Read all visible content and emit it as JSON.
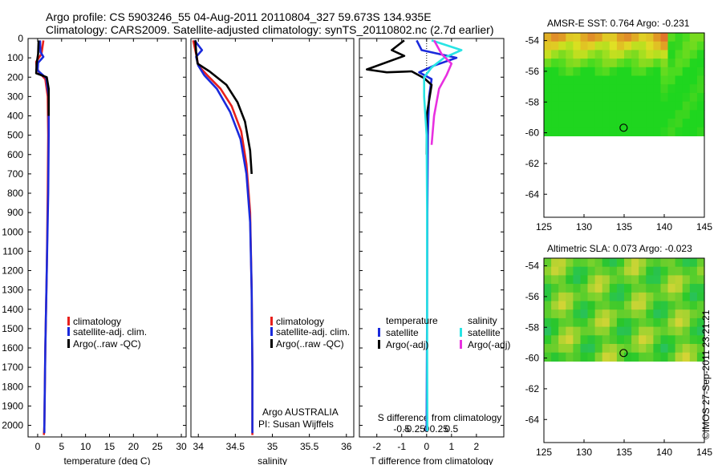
{
  "header": {
    "line1": "Argo profile: CS 5903246_55 04-Aug-2011 20110804_327 59.673S 134.935E",
    "line2": "Climatology: CARS2009. Satellite-adjusted climatology: synTS_20110802.nc (2.7d earlier)"
  },
  "stamp": "©IMOS 27-Sep-2011 23:21:21",
  "colors": {
    "climatology": "#e8201c",
    "satellite": "#1a2adc",
    "argo": "#000000",
    "satellite_s": "#28e4e4",
    "argo_s": "#e830e0",
    "ocean_green": "#40c858"
  },
  "chart_data": [
    {
      "type": "line",
      "name": "temperature-profile",
      "xlabel": "temperature (deg C)",
      "ylabel": "",
      "xlim": [
        -2,
        31
      ],
      "ylim": [
        2060,
        0
      ],
      "xticks": [
        0,
        5,
        10,
        15,
        20,
        25,
        30
      ],
      "yticks": [
        0,
        100,
        200,
        300,
        400,
        500,
        600,
        700,
        800,
        900,
        1000,
        1100,
        1200,
        1300,
        1400,
        1500,
        1600,
        1700,
        1800,
        1900,
        2000
      ],
      "legend": [
        "climatology",
        "satellite-adj. clim.",
        "Argo(..raw -QC)"
      ],
      "legend_position": "lower-center",
      "series": [
        {
          "name": "climatology",
          "color": "#e8201c",
          "points": [
            [
              1.2,
              10
            ],
            [
              0.8,
              80
            ],
            [
              -0.3,
              120
            ],
            [
              -0.2,
              150
            ],
            [
              0.3,
              175
            ],
            [
              1.6,
              210
            ],
            [
              2.1,
              300
            ],
            [
              2.2,
              500
            ],
            [
              2.1,
              800
            ],
            [
              1.9,
              1200
            ],
            [
              1.6,
              1600
            ],
            [
              1.4,
              2000
            ],
            [
              1.3,
              2050
            ]
          ]
        },
        {
          "name": "satellite-adj. clim.",
          "color": "#1a2adc",
          "points": [
            [
              0.5,
              10
            ],
            [
              0.6,
              70
            ],
            [
              1.2,
              95
            ],
            [
              0.1,
              125
            ],
            [
              0.0,
              165
            ],
            [
              1.8,
              205
            ],
            [
              2.3,
              300
            ],
            [
              2.3,
              500
            ],
            [
              2.2,
              800
            ],
            [
              1.9,
              1200
            ],
            [
              1.6,
              1600
            ],
            [
              1.4,
              2000
            ],
            [
              1.4,
              2040
            ]
          ]
        },
        {
          "name": "Argo(..raw -QC)",
          "color": "#000000",
          "points": [
            [
              0.2,
              10
            ],
            [
              0.1,
              80
            ],
            [
              -0.2,
              130
            ],
            [
              -0.3,
              180
            ],
            [
              1.9,
              200
            ],
            [
              2.3,
              260
            ],
            [
              2.3,
              400
            ]
          ]
        }
      ]
    },
    {
      "type": "line",
      "name": "salinity-profile",
      "xlabel": "salinity",
      "ylabel": "",
      "xlim": [
        33.9,
        36.1
      ],
      "ylim": [
        2060,
        0
      ],
      "xticks": [
        34,
        34.5,
        35,
        35.5,
        36
      ],
      "xticklabels": [
        "34",
        "34.5",
        "35",
        "35.5",
        "36"
      ],
      "legend": [
        "climatology",
        "satellite-adj. clim.",
        "Argo(..raw -QC)"
      ],
      "annotation": [
        "Argo AUSTRALIA",
        "PI: Susan Wijffels"
      ],
      "series": [
        {
          "name": "climatology",
          "color": "#e8201c",
          "points": [
            [
              33.93,
              10
            ],
            [
              33.97,
              80
            ],
            [
              34.0,
              140
            ],
            [
              34.12,
              190
            ],
            [
              34.3,
              260
            ],
            [
              34.45,
              350
            ],
            [
              34.58,
              480
            ],
            [
              34.65,
              650
            ],
            [
              34.7,
              900
            ],
            [
              34.72,
              1300
            ],
            [
              34.73,
              1700
            ],
            [
              34.73,
              2050
            ]
          ]
        },
        {
          "name": "satellite-adj. clim.",
          "color": "#1a2adc",
          "points": [
            [
              33.95,
              10
            ],
            [
              34.05,
              60
            ],
            [
              33.97,
              95
            ],
            [
              34.0,
              140
            ],
            [
              34.08,
              190
            ],
            [
              34.25,
              260
            ],
            [
              34.43,
              380
            ],
            [
              34.57,
              520
            ],
            [
              34.65,
              700
            ],
            [
              34.7,
              950
            ],
            [
              34.72,
              1300
            ],
            [
              34.73,
              1700
            ],
            [
              34.73,
              2040
            ]
          ]
        },
        {
          "name": "Argo(..raw -QC)",
          "color": "#000000",
          "points": [
            [
              33.96,
              10
            ],
            [
              33.97,
              70
            ],
            [
              33.99,
              130
            ],
            [
              34.15,
              170
            ],
            [
              34.38,
              240
            ],
            [
              34.53,
              330
            ],
            [
              34.63,
              430
            ],
            [
              34.7,
              580
            ],
            [
              34.72,
              700
            ]
          ]
        }
      ]
    },
    {
      "type": "line",
      "name": "difference-profile",
      "xlabel": "T difference from climatology",
      "top_label": "S difference from climatology",
      "xlim": [
        -2.7,
        3.1
      ],
      "ylim": [
        2060,
        0
      ],
      "xticks": [
        -2,
        -1,
        0,
        1,
        2
      ],
      "s_xticks": [
        -0.5,
        -0.25,
        0,
        0.25,
        0.5
      ],
      "s_xticklabels": [
        "-0.5",
        "-0.25",
        "0",
        "0.25",
        "0.5"
      ],
      "legend_titles": [
        "temperature",
        "salinity"
      ],
      "legend": [
        "satellite",
        "Argo(-adj)",
        "satellite",
        "Argo(-adj)"
      ],
      "series": [
        {
          "name": "satellite",
          "group": "temperature",
          "color": "#1a2adc",
          "points": [
            [
              -0.4,
              10
            ],
            [
              -0.2,
              60
            ],
            [
              1.2,
              100
            ],
            [
              0.3,
              140
            ],
            [
              -0.3,
              175
            ],
            [
              0.2,
              210
            ],
            [
              0.1,
              300
            ],
            [
              0.05,
              500
            ],
            [
              0.03,
              900
            ],
            [
              0.02,
              1400
            ],
            [
              0.0,
              2030
            ]
          ]
        },
        {
          "name": "Argo(-adj)",
          "group": "temperature",
          "color": "#000000",
          "points": [
            [
              -0.9,
              10
            ],
            [
              -1.4,
              60
            ],
            [
              -0.9,
              90
            ],
            [
              -2.4,
              160
            ],
            [
              -1.6,
              175
            ],
            [
              -0.6,
              170
            ],
            [
              -0.1,
              205
            ],
            [
              0.2,
              240
            ],
            [
              0.0,
              400
            ],
            [
              0.0,
              600
            ]
          ]
        },
        {
          "name": "satellite",
          "group": "salinity",
          "color": "#28e4e4",
          "points": [
            [
              0.2,
              10
            ],
            [
              1.4,
              60
            ],
            [
              0.7,
              100
            ],
            [
              0.2,
              150
            ],
            [
              -0.1,
              200
            ],
            [
              -0.1,
              300
            ],
            [
              0.0,
              500
            ],
            [
              0.02,
              900
            ],
            [
              0.02,
              1400
            ],
            [
              0.03,
              2030
            ]
          ]
        },
        {
          "name": "Argo(-adj)",
          "group": "salinity",
          "color": "#e830e0",
          "points": [
            [
              0.3,
              10
            ],
            [
              0.6,
              80
            ],
            [
              1.0,
              130
            ],
            [
              0.8,
              190
            ],
            [
              0.5,
              260
            ],
            [
              0.3,
              400
            ],
            [
              0.2,
              550
            ]
          ]
        }
      ]
    },
    {
      "type": "heatmap",
      "name": "sst-map",
      "title": "AMSR-E SST: 0.764 Argo: -0.231",
      "xlim": [
        125,
        145
      ],
      "ylim": [
        -65.5,
        -53.5
      ],
      "xticks": [
        125,
        130,
        135,
        140,
        145
      ],
      "yticks": [
        -54,
        -56,
        -58,
        -60,
        -62,
        -64
      ],
      "data_lat_min": -60.2,
      "marker": {
        "lon": 134.935,
        "lat": -59.673
      }
    },
    {
      "type": "heatmap",
      "name": "sla-map",
      "title": "Altimetric SLA: 0.073 Argo: -0.023",
      "xlim": [
        125,
        145
      ],
      "ylim": [
        -65.5,
        -53.5
      ],
      "xticks": [
        125,
        130,
        135,
        140,
        145
      ],
      "yticks": [
        -54,
        -56,
        -58,
        -60,
        -62,
        -64
      ],
      "data_lat_min": -60.2,
      "marker": {
        "lon": 134.935,
        "lat": -59.673
      }
    }
  ]
}
